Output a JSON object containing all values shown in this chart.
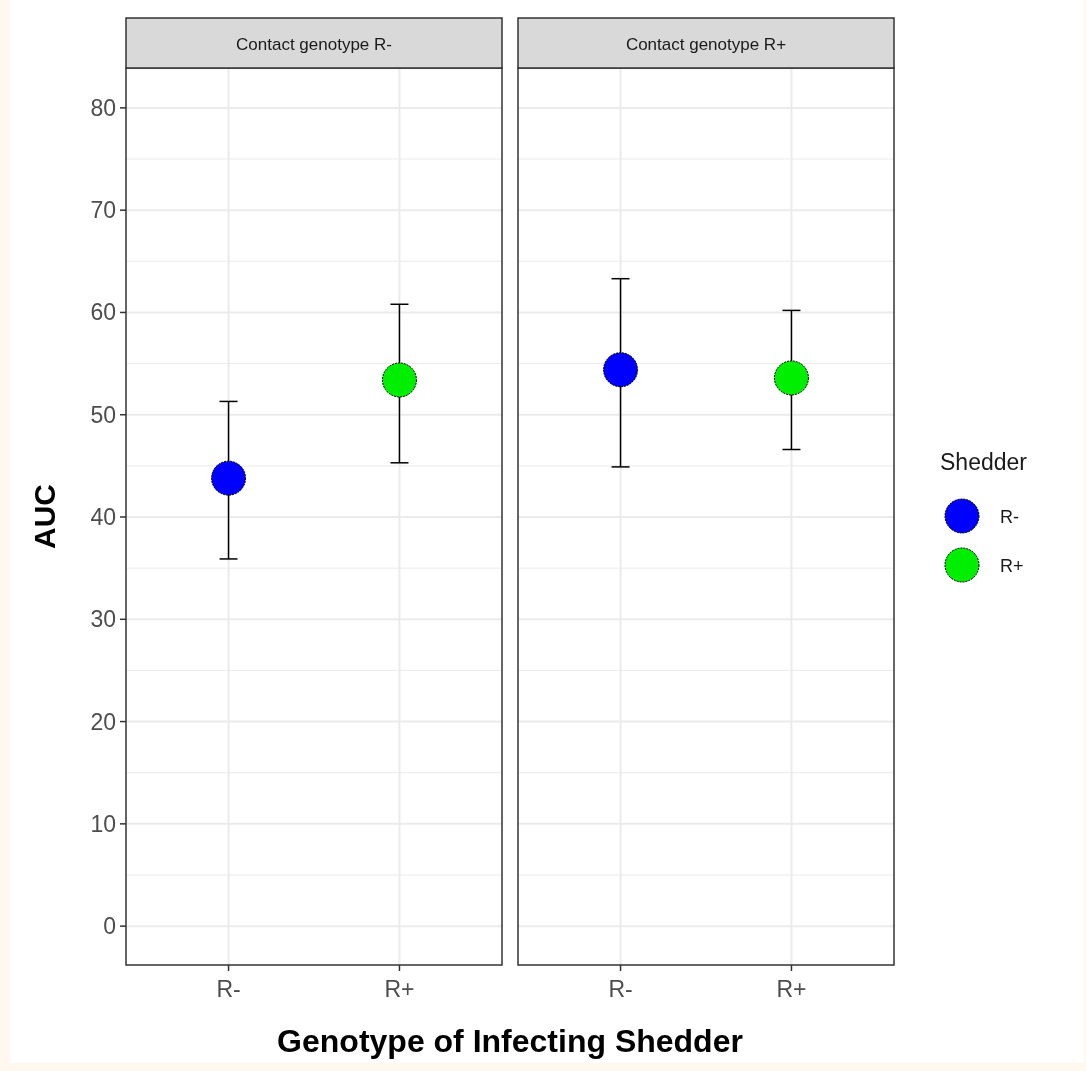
{
  "chart_data": [
    {
      "type": "scatter",
      "title": "Contact genotype R-",
      "xlabel": "Genotype of Infecting Shedder",
      "ylabel": "AUC",
      "categories": [
        "R-",
        "R+"
      ],
      "ylim": [
        -3.8,
        83.9
      ],
      "yticks": [
        0,
        10,
        20,
        30,
        40,
        50,
        60,
        70,
        80
      ],
      "grid": true,
      "marker": "circle",
      "legend": false,
      "series": [
        {
          "color": "#0000ff",
          "values": [
            43.8,
            null
          ],
          "errors": [
            [
              35.9,
              51.3
            ],
            null
          ]
        },
        {
          "color": "#00ee00",
          "values": [
            null,
            53.4
          ],
          "errors": [
            null,
            [
              45.3,
              60.8
            ]
          ]
        }
      ]
    },
    {
      "type": "scatter",
      "title": "Contact genotype R+",
      "categories": [
        "R-",
        "R+"
      ],
      "ylim": [
        -3.8,
        83.9
      ],
      "yticks": [
        0,
        10,
        20,
        30,
        40,
        50,
        60,
        70,
        80
      ],
      "grid": true,
      "marker": "circle",
      "tick_labels": "x",
      "legend": "right",
      "legend_title": "Shedder",
      "series": [
        {
          "name": "R-",
          "color": "#0000ff",
          "values": [
            54.4,
            null
          ],
          "errors": [
            [
              44.9,
              63.3
            ],
            null
          ]
        },
        {
          "name": "R+",
          "color": "#00ee00",
          "values": [
            null,
            53.6
          ],
          "errors": [
            null,
            [
              46.6,
              60.2
            ]
          ]
        }
      ]
    }
  ]
}
